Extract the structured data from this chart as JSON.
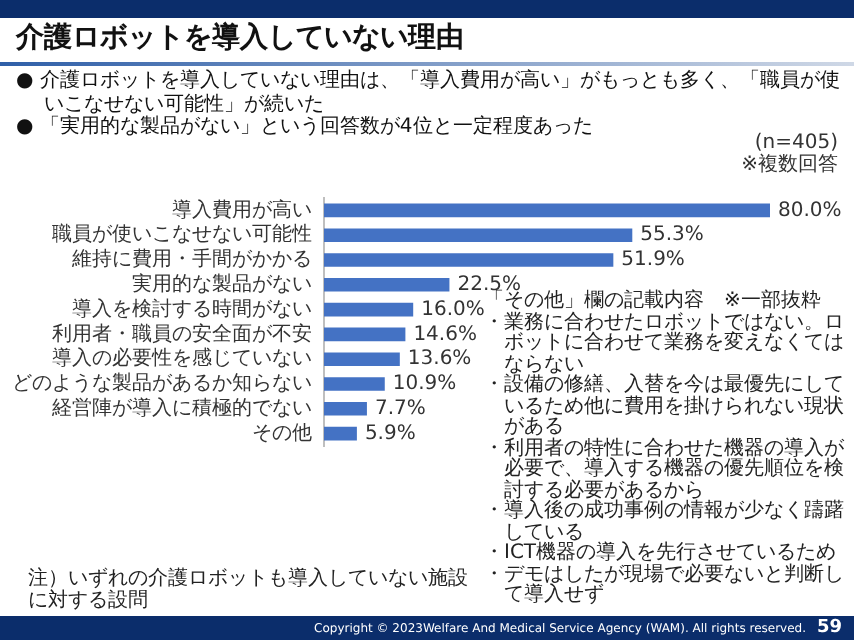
{
  "chart_data": {
    "type": "bar",
    "orientation": "horizontal",
    "title": "介護ロボットを導入していない理由",
    "categories": [
      "導入費用が高い",
      "職員が使いこなせない可能性",
      "維持に費用・手間がかかる",
      "実用的な製品がない",
      "導入を検討する時間がない",
      "利用者・職員の安全面が不安",
      "導入の必要性を感じていない",
      "どのような製品があるか知らない",
      "経営陣が導入に積極的でない",
      "その他"
    ],
    "values": [
      80.0,
      55.3,
      51.9,
      22.5,
      16.0,
      14.6,
      13.6,
      10.9,
      7.7,
      5.9
    ],
    "value_labels": [
      "80.0%",
      "55.3%",
      "51.9%",
      "22.5%",
      "16.0%",
      "14.6%",
      "13.6%",
      "10.9%",
      "7.7%",
      "5.9%"
    ],
    "color": "#4472c4",
    "grid": false,
    "legend": false,
    "tick_labels": "y",
    "annotations": [
      "● 介護ロボットを導入していない理由は、「導入費用が高い」がもっとも多く、「職員が使いこなせない可能性」が続いた",
      "● 「実用的な製品がない」という回答数が4位と一定程度あった",
      "(n=405)",
      "※複数回答",
      "「その他」欄の記載内容　※一部抜粋",
      "・業務に合わせたロボットではない。ロボットに合わせて業務を変えなくてはならない",
      "・設備の修繕、入替を今は最優先にしているため他に費用を掛けられない現状がある",
      "・利用者の特性に合わせた機器の導入が必要で、導入する機器の優先順位を検討する必要があるから",
      "・導入後の成功事例の情報が少なく躊躇している",
      "・ICT機器の導入を先行させているため",
      "・デモはしたが現場で必要ないと判断して導入せず",
      "注）いずれの介護ロボットも導入していない施設に対する設問",
      "Copyright © 2023Welfare And Medical Service Agency (WAM). All rights reserved.",
      "59"
    ]
  }
}
